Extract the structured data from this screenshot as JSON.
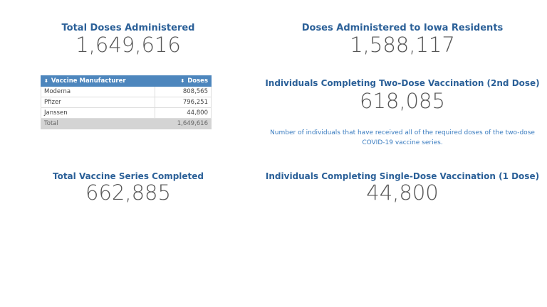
{
  "total_doses": {
    "title": "Total Doses Administered",
    "value": "1,649,616"
  },
  "iowa_doses": {
    "title": "Doses Administered to Iowa Residents",
    "value": "1,588,117"
  },
  "two_dose": {
    "title": "Individuals Completing Two-Dose Vaccination (2nd Dose)",
    "value": "618,085",
    "note": "Number of individuals that have received all of the required doses of the two-dose COVID-19 vaccine series."
  },
  "series_completed": {
    "title": "Total Vaccine Series Completed",
    "value": "662,885"
  },
  "single_dose": {
    "title": "Individuals Completing Single-Dose Vaccination (1 Dose)",
    "value": "44,800"
  },
  "table": {
    "headers": [
      "Vaccine Manufacturer",
      "Doses"
    ],
    "rows": [
      [
        "Moderna",
        "808,565"
      ],
      [
        "Pfizer",
        "796,251"
      ],
      [
        "Janssen",
        "44,800"
      ]
    ],
    "total": [
      "Total",
      "1,649,616"
    ]
  }
}
